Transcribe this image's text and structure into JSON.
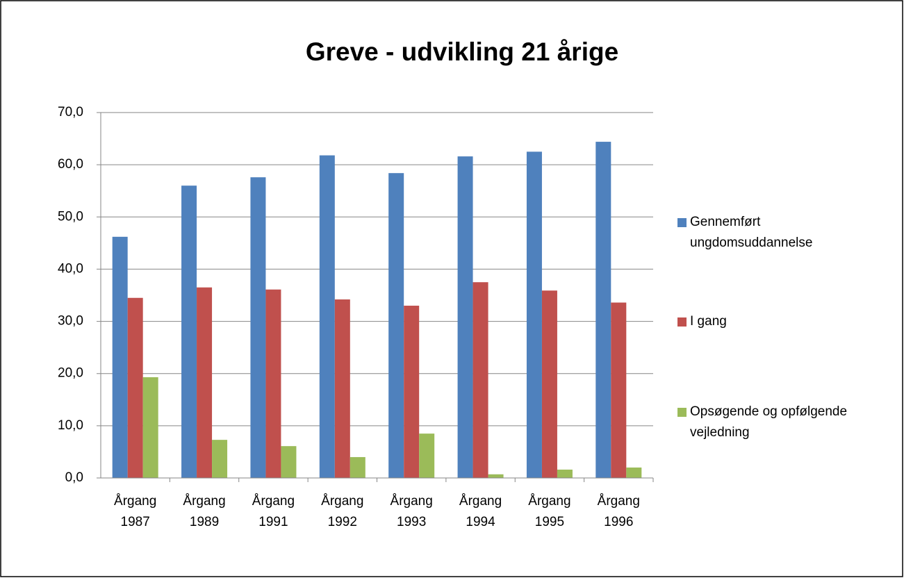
{
  "chart_data": {
    "type": "bar",
    "title": "Greve - udvikling 21 årige",
    "categories": [
      [
        "Årgang",
        "1987"
      ],
      [
        "Årgang",
        "1989"
      ],
      [
        "Årgang",
        "1991"
      ],
      [
        "Årgang",
        "1992"
      ],
      [
        "Årgang",
        "1993"
      ],
      [
        "Årgang",
        "1994"
      ],
      [
        "Årgang",
        "1995"
      ],
      [
        "Årgang",
        "1996"
      ]
    ],
    "series": [
      {
        "name": "Gennemført ungdomsuddannelse",
        "color": "#4f81bd",
        "values": [
          46.2,
          56.0,
          57.6,
          61.8,
          58.4,
          61.6,
          62.5,
          64.4
        ]
      },
      {
        "name": "I gang",
        "color": "#c0504d",
        "values": [
          34.5,
          36.5,
          36.1,
          34.2,
          33.0,
          37.5,
          35.9,
          33.6
        ]
      },
      {
        "name": "Opsøgende og opfølgende vejledning",
        "color": "#9bbb59",
        "values": [
          19.3,
          7.3,
          6.1,
          4.0,
          8.5,
          0.7,
          1.6,
          2.0
        ]
      }
    ],
    "ylim": [
      0,
      70
    ],
    "yticks": [
      {
        "value": 0,
        "label": "0,0"
      },
      {
        "value": 10,
        "label": "10,0"
      },
      {
        "value": 20,
        "label": "20,0"
      },
      {
        "value": 30,
        "label": "30,0"
      },
      {
        "value": 40,
        "label": "40,0"
      },
      {
        "value": 50,
        "label": "50,0"
      },
      {
        "value": 60,
        "label": "60,0"
      },
      {
        "value": 70,
        "label": "70,0"
      }
    ],
    "grid": true,
    "legend": "right"
  }
}
